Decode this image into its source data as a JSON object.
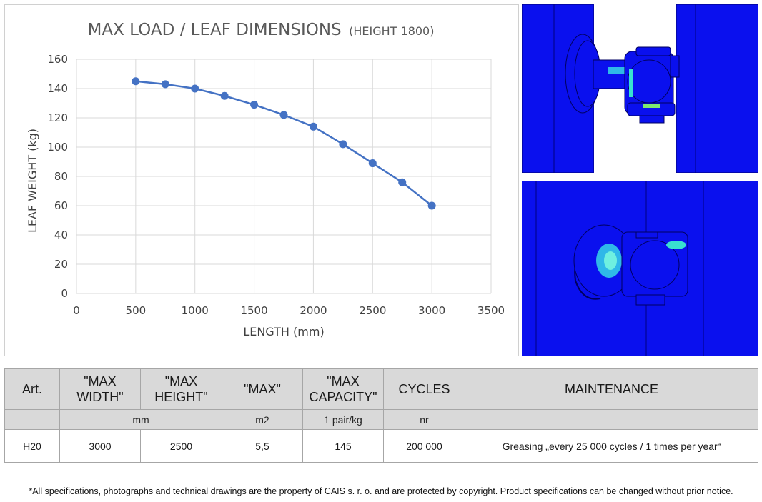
{
  "chart_data": {
    "type": "line",
    "title": "MAX LOAD / LEAF DIMENSIONS",
    "subtitle": "(HEIGHT 1800)",
    "xlabel": "LENGTH (mm)",
    "ylabel": "LEAF WEIGHT (kg)",
    "xlim": [
      0,
      3500
    ],
    "ylim": [
      0,
      160
    ],
    "xticks": [
      "0",
      "500",
      "1000",
      "1500",
      "2000",
      "2500",
      "3000",
      "3500"
    ],
    "yticks": [
      "0",
      "20",
      "40",
      "60",
      "80",
      "100",
      "120",
      "140",
      "160"
    ],
    "grid": true,
    "legend": "none",
    "series": [
      {
        "x": [
          500,
          750,
          1000,
          1250,
          1500,
          1750,
          2000,
          2250,
          2500,
          2750,
          3000
        ],
        "y": [
          145,
          143,
          140,
          135,
          129,
          122,
          114,
          102,
          89,
          76,
          60
        ],
        "color": "#4472c4"
      }
    ]
  },
  "table": {
    "headers": [
      [
        "Art."
      ],
      [
        "\"MAX",
        "WIDTH\""
      ],
      [
        "\"MAX",
        "HEIGHT\""
      ],
      [
        "\"MAX\""
      ],
      [
        "\"MAX",
        "CAPACITY\""
      ],
      [
        "CYCLES"
      ],
      [
        "MAINTENANCE"
      ]
    ],
    "units": {
      "dimensions": "mm",
      "area": "m2",
      "capacity": "1 pair/kg",
      "cycles": "nr"
    },
    "row": {
      "art": "H20",
      "width": "3000",
      "height": "2500",
      "area": "5,5",
      "capacity": "145",
      "cycles": "200 000",
      "maintenance": "Greasing „every 25 000 cycles / 1 times per year“"
    }
  },
  "footnote": "*All specifications, photographs and technical drawings are the property of CAIS s. r. o. and are protected by copyright. Product specifications can be changed without prior notice.",
  "colors": {
    "fea_background": "#0a10ee",
    "line": "#4472c4",
    "table_header": "#d9d9d9"
  }
}
